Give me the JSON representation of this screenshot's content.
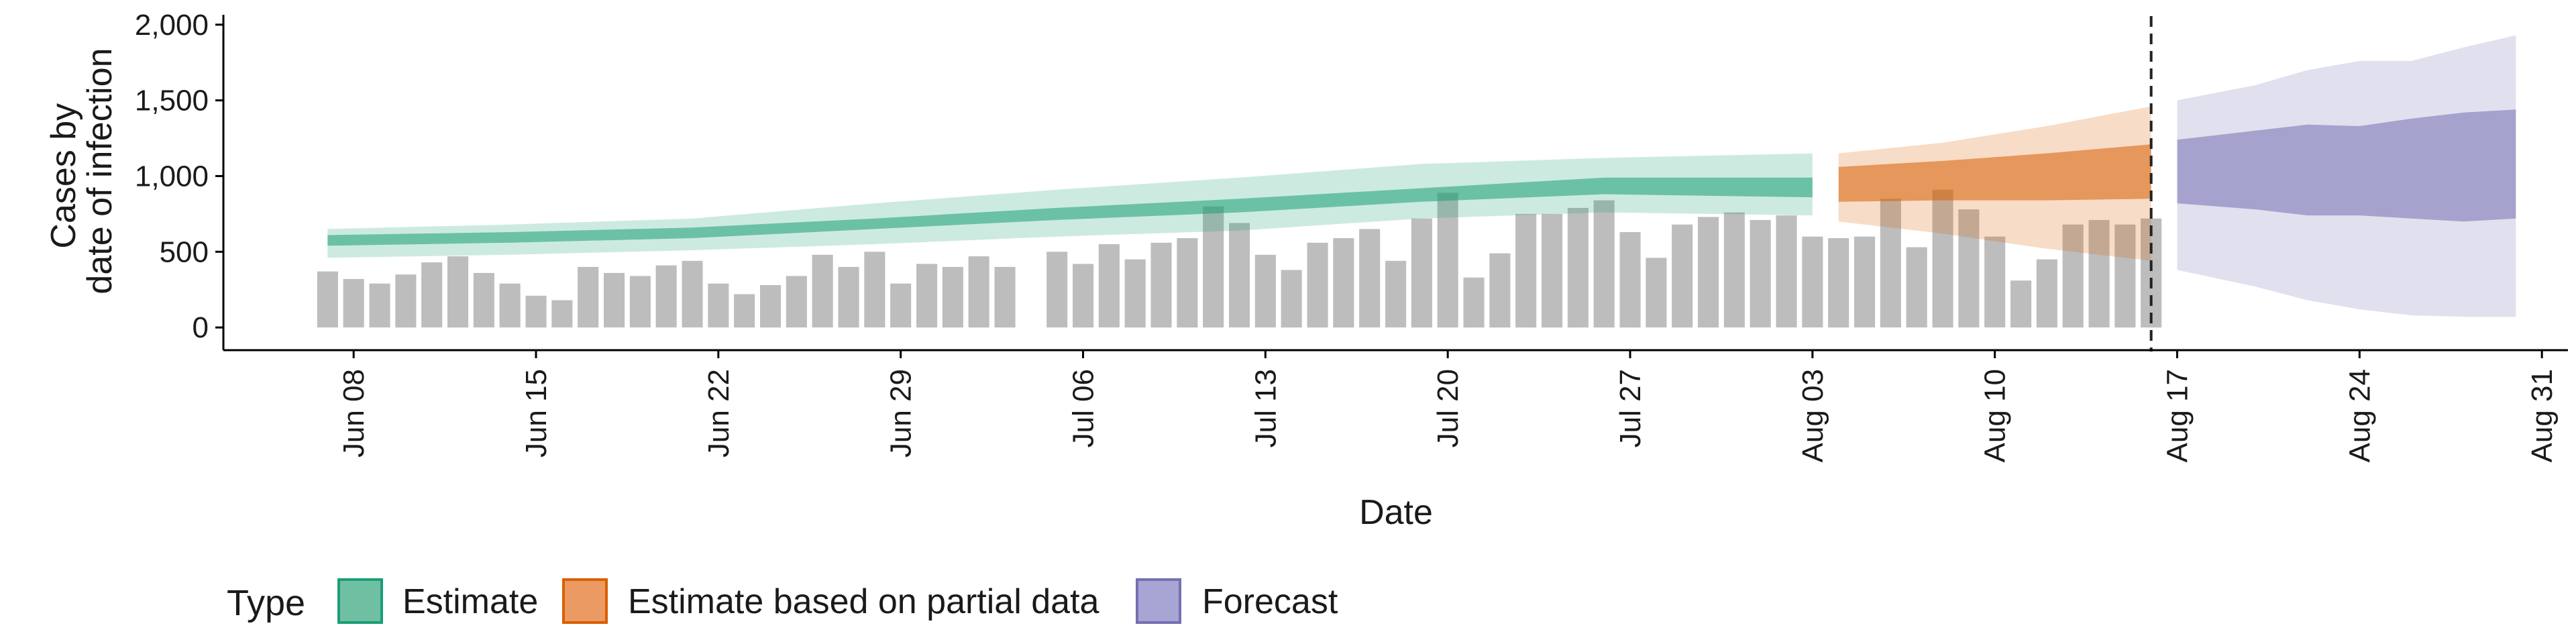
{
  "chart_data": {
    "type": "bar",
    "xlabel": "Date",
    "ylabel": [
      "Cases by",
      "date of infection"
    ],
    "ylim": [
      -150,
      2030
    ],
    "yticks": [
      0,
      500,
      1000,
      1500,
      2000
    ],
    "ytick_labels": [
      "0",
      "500",
      "1,000",
      "1,500",
      "2,000"
    ],
    "x_range": [
      "2020-06-03",
      "2020-09-01"
    ],
    "xticks": [
      "2020-06-08",
      "2020-06-15",
      "2020-06-22",
      "2020-06-29",
      "2020-07-06",
      "2020-07-13",
      "2020-07-20",
      "2020-07-27",
      "2020-08-03",
      "2020-08-10",
      "2020-08-17",
      "2020-08-24",
      "2020-08-31"
    ],
    "xtick_labels": [
      "Jun 08",
      "Jun 15",
      "Jun 22",
      "Jun 29",
      "Jul 06",
      "Jul 13",
      "Jul 20",
      "Jul 27",
      "Aug 03",
      "Aug 10",
      "Aug 17",
      "Aug 24",
      "Aug 31"
    ],
    "vline_date": "2020-08-16",
    "grid": false,
    "legend_position": "bottom",
    "legend_title": "Type",
    "legend": [
      {
        "label": "Estimate",
        "fill": "#6fc0a2",
        "stroke": "#1b9e77"
      },
      {
        "label": "Estimate based on partial data",
        "fill": "#eb9a63",
        "stroke": "#d95f02"
      },
      {
        "label": "Forecast",
        "fill": "#a7a5d3",
        "stroke": "#7570b3"
      }
    ],
    "colors": {
      "bars": "#bdbdbd",
      "estimate": "#1b9e77",
      "partial": "#d95f02",
      "forecast": "#7570b3",
      "vline": "#222222"
    },
    "observed_cases": {
      "start_date": "2020-06-07",
      "values": [
        370,
        320,
        290,
        350,
        430,
        470,
        360,
        290,
        210,
        180,
        400,
        360,
        340,
        410,
        440,
        290,
        220,
        280,
        340,
        480,
        400,
        500,
        290,
        420,
        400,
        470,
        400,
        null,
        500,
        420,
        550,
        450,
        560,
        590,
        800,
        690,
        480,
        380,
        560,
        590,
        650,
        440,
        720,
        890,
        330,
        490,
        750,
        750,
        790,
        840,
        630,
        460,
        680,
        730,
        760,
        710,
        740,
        600,
        590,
        600,
        850,
        530,
        910,
        780,
        600,
        310,
        450,
        680,
        710,
        680,
        720
      ]
    },
    "series": [
      {
        "name": "Estimate",
        "type": "estimate",
        "dates": [
          "2020-06-07",
          "2020-06-14",
          "2020-06-21",
          "2020-06-28",
          "2020-07-05",
          "2020-07-12",
          "2020-07-19",
          "2020-07-26",
          "2020-08-03"
        ],
        "median": [
          570,
          590,
          620,
          680,
          740,
          800,
          870,
          930,
          920
        ],
        "inner_band": [
          [
            540,
            610
          ],
          [
            560,
            630
          ],
          [
            590,
            660
          ],
          [
            650,
            720
          ],
          [
            710,
            790
          ],
          [
            760,
            850
          ],
          [
            830,
            920
          ],
          [
            880,
            990
          ],
          [
            860,
            990
          ]
        ],
        "outer_band": [
          [
            460,
            650
          ],
          [
            480,
            680
          ],
          [
            510,
            720
          ],
          [
            550,
            820
          ],
          [
            600,
            910
          ],
          [
            640,
            990
          ],
          [
            720,
            1080
          ],
          [
            760,
            1120
          ],
          [
            740,
            1150
          ]
        ]
      },
      {
        "name": "Estimate based on partial data",
        "type": "estimate based on partial data",
        "dates": [
          "2020-08-04",
          "2020-08-08",
          "2020-08-12",
          "2020-08-16"
        ],
        "median": [
          950,
          1000,
          1030,
          1060
        ],
        "inner_band": [
          [
            830,
            1060
          ],
          [
            840,
            1100
          ],
          [
            840,
            1150
          ],
          [
            850,
            1210
          ]
        ],
        "outer_band": [
          [
            700,
            1150
          ],
          [
            620,
            1220
          ],
          [
            520,
            1330
          ],
          [
            440,
            1460
          ]
        ]
      },
      {
        "name": "Forecast",
        "type": "forecast",
        "dates": [
          "2020-08-17",
          "2020-08-20",
          "2020-08-22",
          "2020-08-24",
          "2020-08-26",
          "2020-08-28",
          "2020-08-30"
        ],
        "median": [
          1030,
          1070,
          1040,
          1040,
          1040,
          1060,
          1070
        ],
        "inner_band": [
          [
            820,
            1240
          ],
          [
            780,
            1300
          ],
          [
            740,
            1340
          ],
          [
            740,
            1330
          ],
          [
            720,
            1380
          ],
          [
            700,
            1420
          ],
          [
            720,
            1440
          ]
        ],
        "outer_band": [
          [
            380,
            1500
          ],
          [
            270,
            1600
          ],
          [
            180,
            1700
          ],
          [
            120,
            1760
          ],
          [
            80,
            1760
          ],
          [
            70,
            1850
          ],
          [
            70,
            1930
          ]
        ]
      }
    ]
  }
}
